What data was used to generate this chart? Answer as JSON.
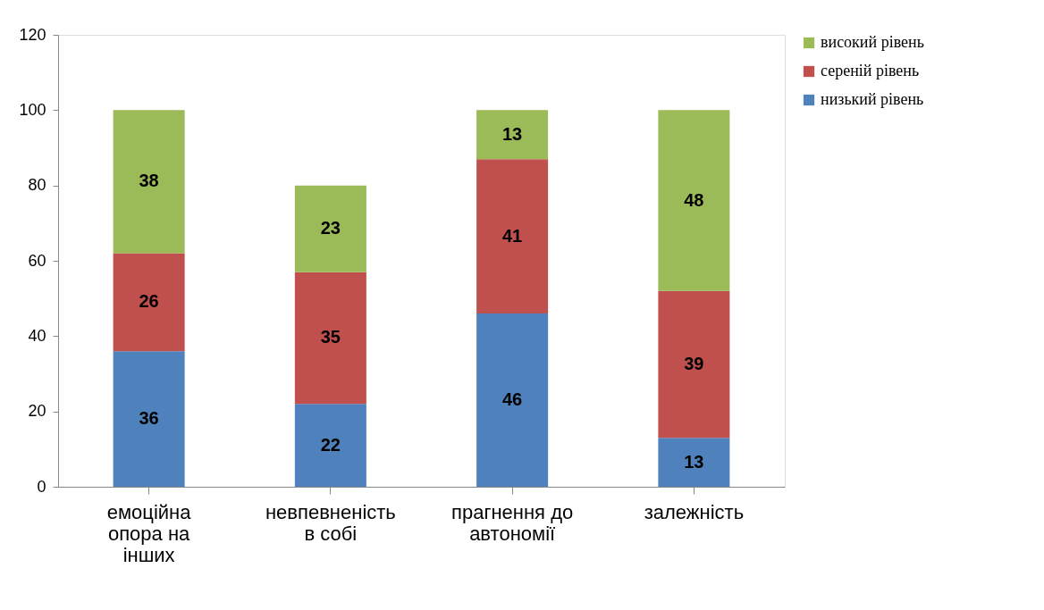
{
  "chart_data": {
    "type": "bar",
    "stacked": true,
    "categories": [
      "емоційна опора на інших",
      "невпевненість в собі",
      "прагнення до автономії",
      "залежність"
    ],
    "series": [
      {
        "name": "низький рівень",
        "color": "#4f81bd",
        "values": [
          36,
          22,
          46,
          13
        ]
      },
      {
        "name": "сереній рівень",
        "color": "#c0504d",
        "values": [
          26,
          35,
          41,
          39
        ]
      },
      {
        "name": "високий рівень",
        "color": "#9bbb59",
        "values": [
          38,
          23,
          13,
          48
        ]
      }
    ],
    "ylim": [
      0,
      120
    ],
    "yticks": [
      0,
      20,
      40,
      60,
      80,
      100,
      120
    ],
    "data_labels": true,
    "grid": false,
    "legend": "right"
  }
}
